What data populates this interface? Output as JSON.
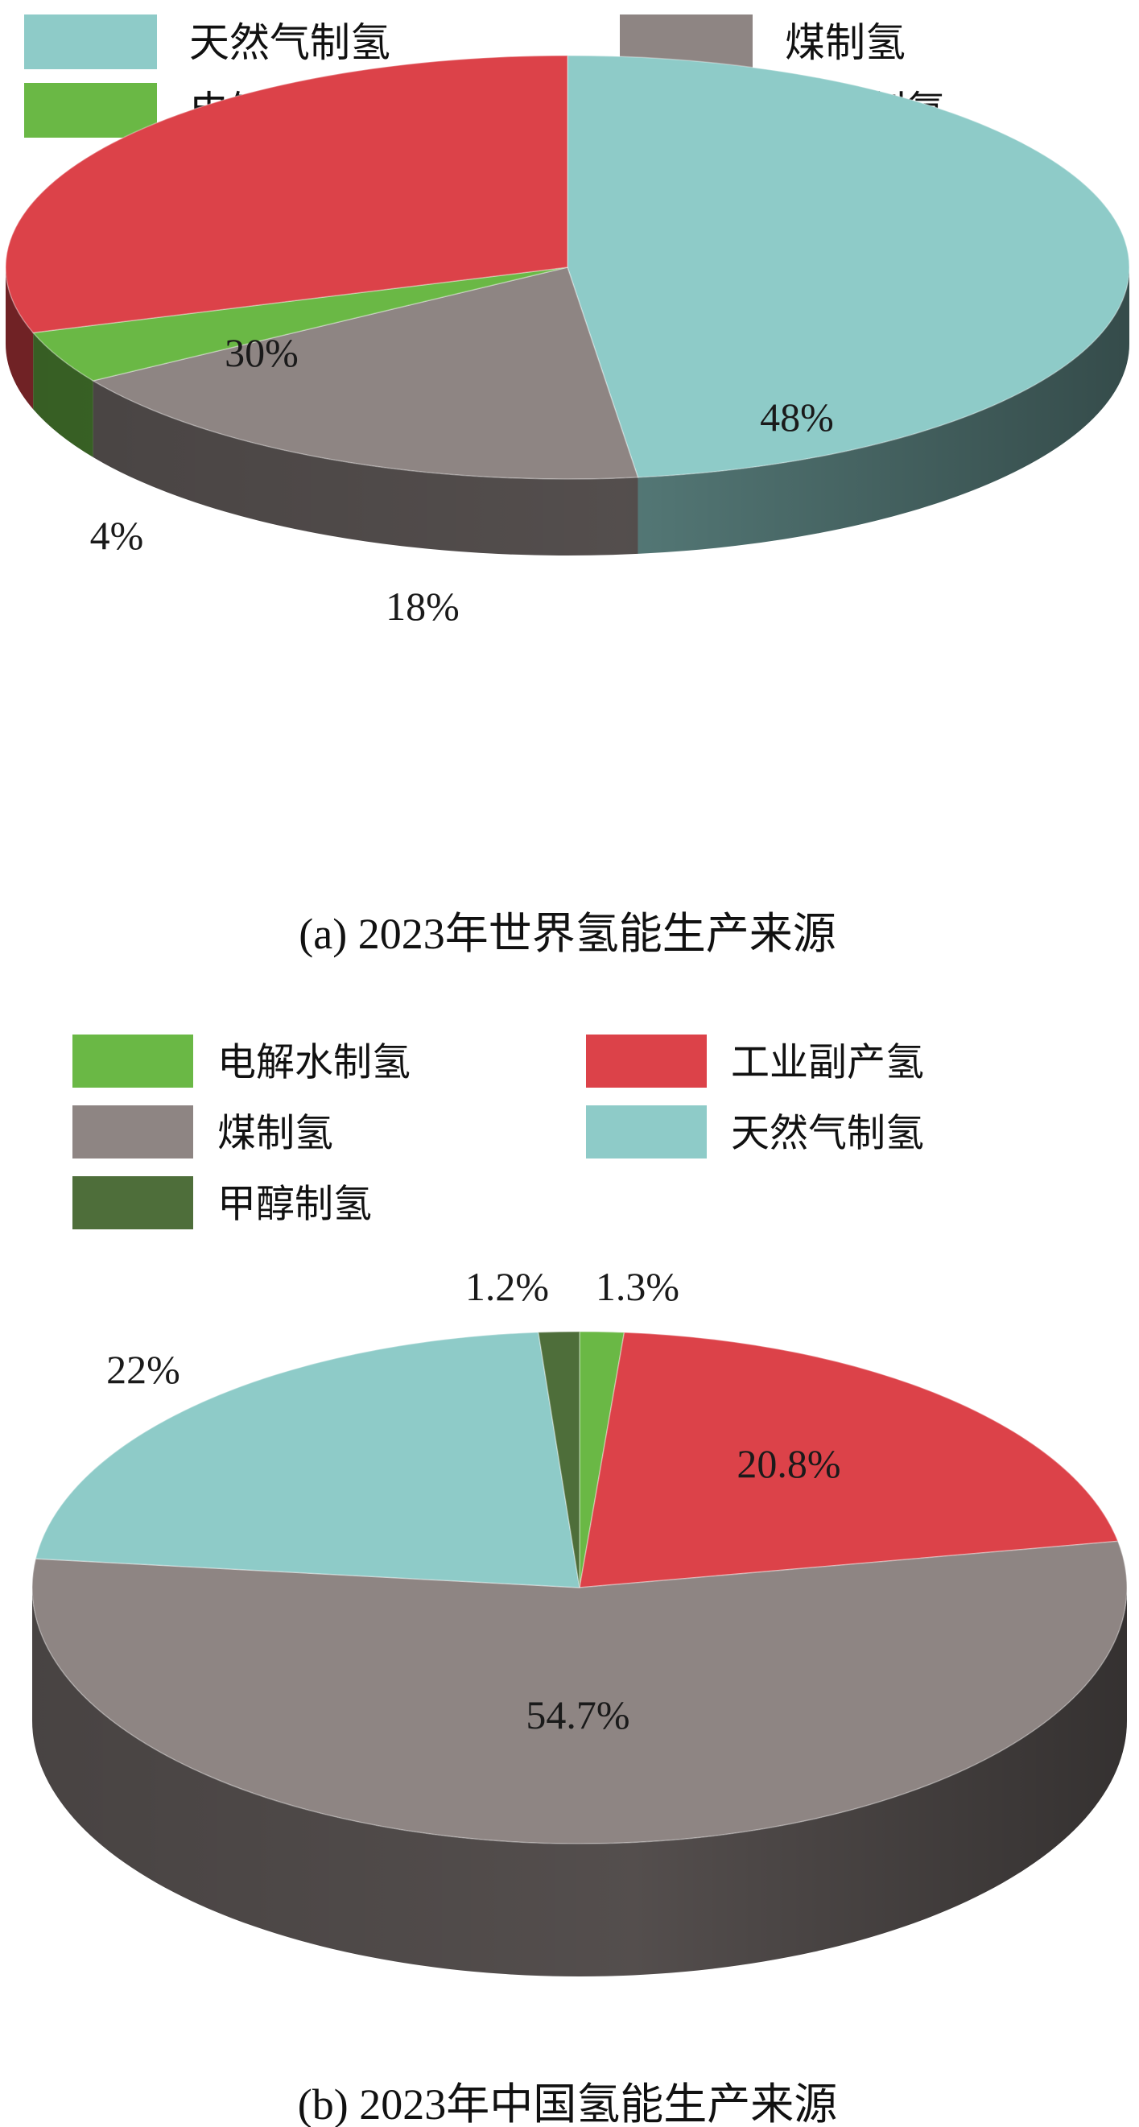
{
  "chart_data": [
    {
      "type": "pie",
      "title": "",
      "caption": "(a) 2023年世界氢能生产来源",
      "legend_placement": "top",
      "legend": [
        "天然气制氢",
        "煤制氢",
        "电解水制氢",
        "石油制氢"
      ],
      "slices": [
        {
          "name": "天然气制氢",
          "value": 48,
          "label": "48%",
          "color": "#8ecbc8"
        },
        {
          "name": "煤制氢",
          "value": 18,
          "label": "18%",
          "color": "#8e8583"
        },
        {
          "name": "电解水制氢",
          "value": 4,
          "label": "4%",
          "color": "#6ab845"
        },
        {
          "name": "石油制氢",
          "value": 30,
          "label": "30%",
          "color": "#dc4249"
        }
      ]
    },
    {
      "type": "pie",
      "title": "",
      "caption": "(b) 2023年中国氢能生产来源",
      "legend_placement": "top",
      "legend": [
        "电解水制氢",
        "工业副产氢",
        "煤制氢",
        "天然气制氢",
        "甲醇制氢"
      ],
      "slices": [
        {
          "name": "电解水制氢",
          "value": 1.3,
          "label": "1.3%",
          "color": "#6ab845"
        },
        {
          "name": "工业副产氢",
          "value": 20.8,
          "label": "20.8%",
          "color": "#dc4249"
        },
        {
          "name": "煤制氢",
          "value": 54.7,
          "label": "54.7%",
          "color": "#8e8583"
        },
        {
          "name": "天然气制氢",
          "value": 22,
          "label": "22%",
          "color": "#8ecbc8"
        },
        {
          "name": "甲醇制氢",
          "value": 1.2,
          "label": "1.2%",
          "color": "#4e6e3a"
        }
      ]
    }
  ]
}
